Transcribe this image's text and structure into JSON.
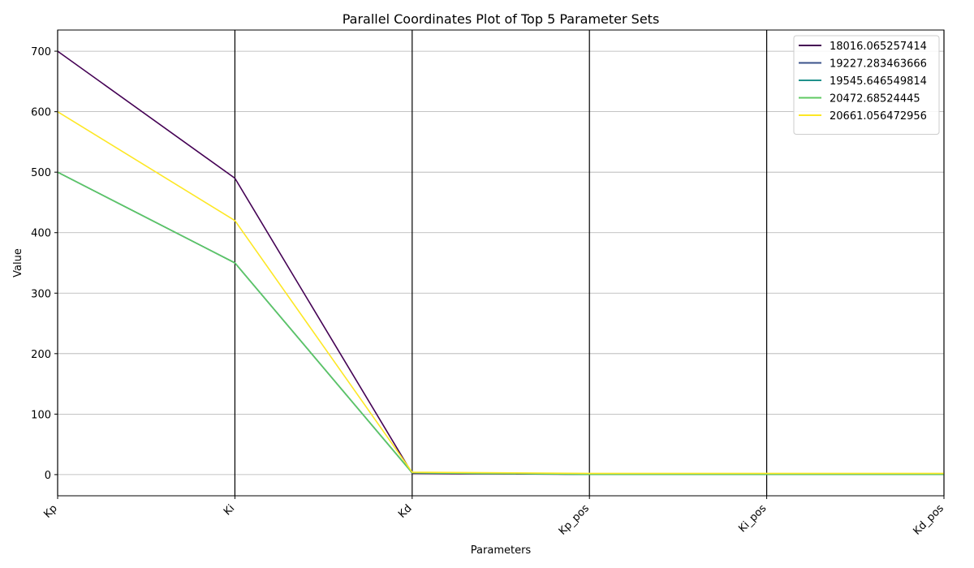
{
  "chart_data": {
    "type": "line",
    "title": "Parallel Coordinates Plot of Top 5 Parameter Sets",
    "xlabel": "Parameters",
    "ylabel": "Value",
    "categories": [
      "Kp",
      "Ki",
      "Kd",
      "Kp_pos",
      "Ki_pos",
      "Kd_pos"
    ],
    "ylim": [
      -35,
      735
    ],
    "yticks": [
      0,
      100,
      200,
      300,
      400,
      500,
      600,
      700
    ],
    "grid": true,
    "legend_position": "top-right",
    "series": [
      {
        "name": "18016.065257414",
        "color": "#440154",
        "values": [
          700,
          490,
          2,
          0.5,
          0.5,
          0.5
        ]
      },
      {
        "name": "19227.283463666",
        "color": "#3b528b",
        "values": [
          500,
          350,
          3,
          0.5,
          0.5,
          0.5
        ]
      },
      {
        "name": "19545.646549814",
        "color": "#21918c",
        "values": [
          500,
          350,
          3,
          0.5,
          0.5,
          0.5
        ]
      },
      {
        "name": "20472.68524445",
        "color": "#5ec962",
        "values": [
          500,
          350,
          3,
          0.5,
          0.5,
          0.5
        ]
      },
      {
        "name": "20661.056472956",
        "color": "#fde725",
        "values": [
          600,
          420,
          4,
          2,
          2,
          2
        ]
      }
    ]
  }
}
